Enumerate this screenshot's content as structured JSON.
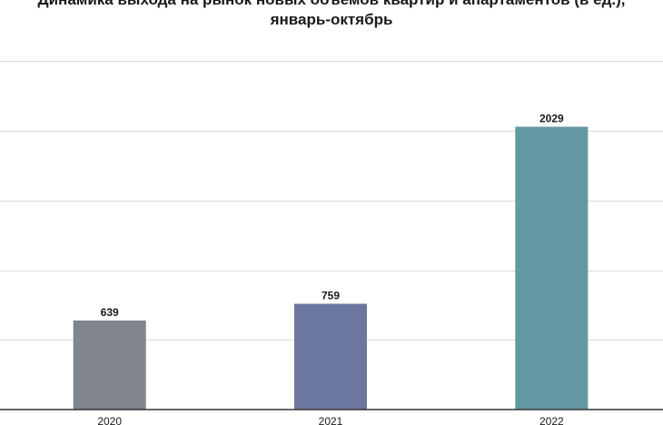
{
  "chart_data": {
    "type": "bar",
    "title_line1": "Динамика выхода на рынок новых объемов квартир и апартаментов (в ед.),",
    "title_line2": "январь-октябрь",
    "categories": [
      "2020",
      "2021",
      "2022"
    ],
    "values": [
      639,
      759,
      2029
    ],
    "colors": [
      "#7f848e",
      "#6b779e",
      "#6399a3"
    ],
    "ylim": [
      0,
      2500
    ],
    "grid": true,
    "xlabel": "",
    "ylabel": ""
  }
}
